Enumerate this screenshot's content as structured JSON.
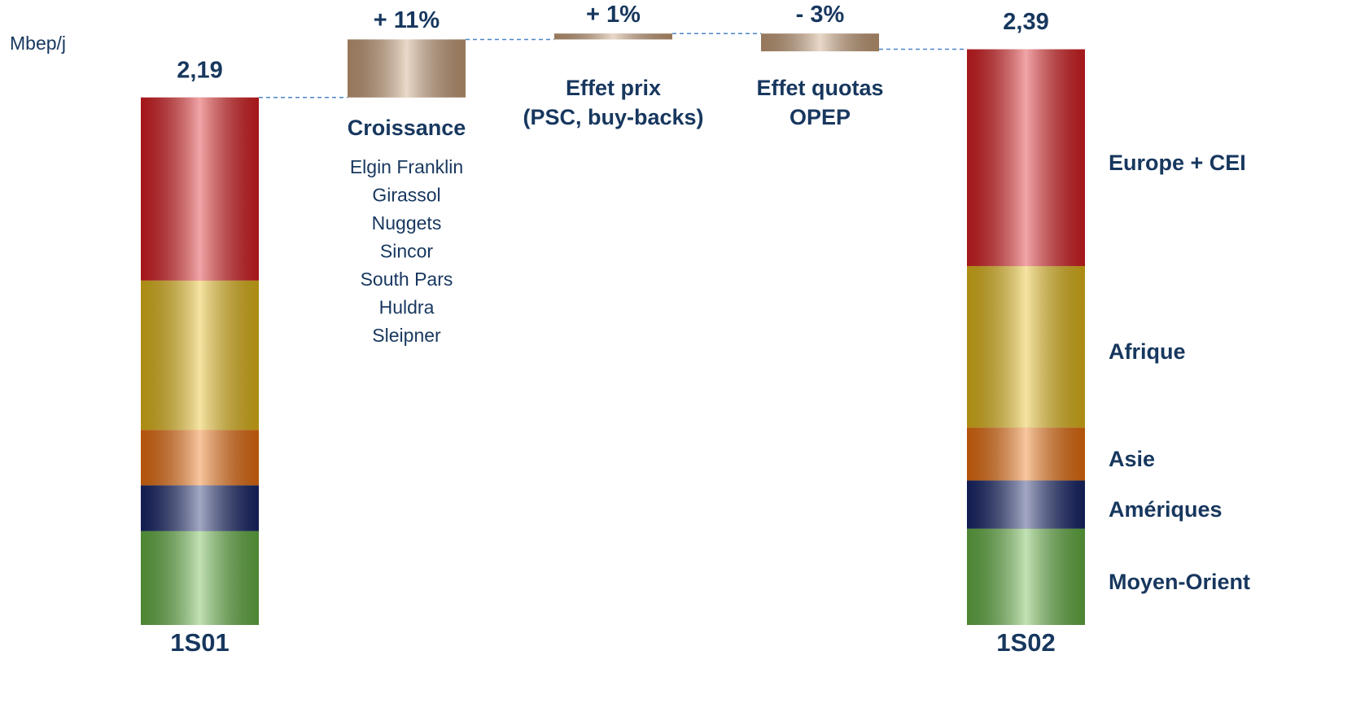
{
  "chart_data": {
    "type": "waterfall",
    "y_label": "Mbep/j",
    "categories": [
      "1S01",
      "1S02"
    ],
    "series": [
      {
        "name": "Moyen-Orient",
        "color": "#66b444",
        "values": [
          0.39,
          0.4
        ]
      },
      {
        "name": "Amériques",
        "color": "#17256a",
        "values": [
          0.19,
          0.2
        ]
      },
      {
        "name": "Asie",
        "color": "#ee700e",
        "values": [
          0.23,
          0.22
        ]
      },
      {
        "name": "Afrique",
        "color": "#e6bb18",
        "values": [
          0.62,
          0.67
        ]
      },
      {
        "name": "Europe + CEI",
        "color": "#dc1e22",
        "values": [
          0.76,
          0.9
        ]
      }
    ],
    "totals": [
      2.19,
      2.39
    ],
    "total_labels": [
      "2,19",
      "2,39"
    ],
    "steps": [
      {
        "name": [
          "Croissance"
        ],
        "value": 11,
        "value_label": "+ 11%",
        "details": [
          "Elgin Franklin",
          "Girassol",
          "Nuggets",
          "Sincor",
          "South Pars",
          "Huldra",
          "Sleipner"
        ]
      },
      {
        "name": [
          "Effet prix",
          "(PSC, buy-backs)"
        ],
        "value": 1,
        "value_label": "+ 1%"
      },
      {
        "name": [
          "Effet quotas",
          "OPEP"
        ],
        "value": -3,
        "value_label": "- 3%"
      }
    ],
    "step_color": "#c9a07a",
    "ylim": [
      0,
      2.5
    ]
  }
}
